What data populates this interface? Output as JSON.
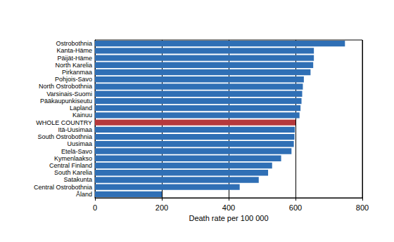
{
  "chart_data": {
    "type": "bar",
    "orientation": "horizontal",
    "xlabel": "Death rate per 100 000",
    "categories": [
      "Ostrobothnia",
      "Kanta-Häme",
      "Päijät-Häme",
      "North Karelia",
      "Pirkanmaa",
      "Pohjois-Savo",
      "North Ostrobothnia",
      "Varsinais-Suomi",
      "Pääkaupunkiseutu",
      "Lapland",
      "Kainuu",
      "WHOLE COUNTRY",
      "Itä-Uusimaa",
      "South Ostrobothnia",
      "Uusimaa",
      "Etelä-Savo",
      "Kymenlaakso",
      "Central Finland",
      "South Karelia",
      "Satakunta",
      "Central Ostrobothnia",
      "Åland"
    ],
    "values": [
      748,
      655,
      655,
      653,
      645,
      625,
      622,
      620,
      618,
      615,
      612,
      600,
      598,
      597,
      595,
      588,
      557,
      530,
      518,
      490,
      433,
      200
    ],
    "colors": [
      "#2f6fb5",
      "#2f6fb5",
      "#2f6fb5",
      "#2f6fb5",
      "#2f6fb5",
      "#2f6fb5",
      "#2f6fb5",
      "#2f6fb5",
      "#2f6fb5",
      "#2f6fb5",
      "#2f6fb5",
      "#b5393c",
      "#2f6fb5",
      "#2f6fb5",
      "#2f6fb5",
      "#2f6fb5",
      "#2f6fb5",
      "#2f6fb5",
      "#2f6fb5",
      "#2f6fb5",
      "#2f6fb5",
      "#2f6fb5"
    ],
    "xlim": [
      0,
      800
    ],
    "xticks": [
      0,
      200,
      400,
      600,
      800
    ],
    "grid": true
  }
}
